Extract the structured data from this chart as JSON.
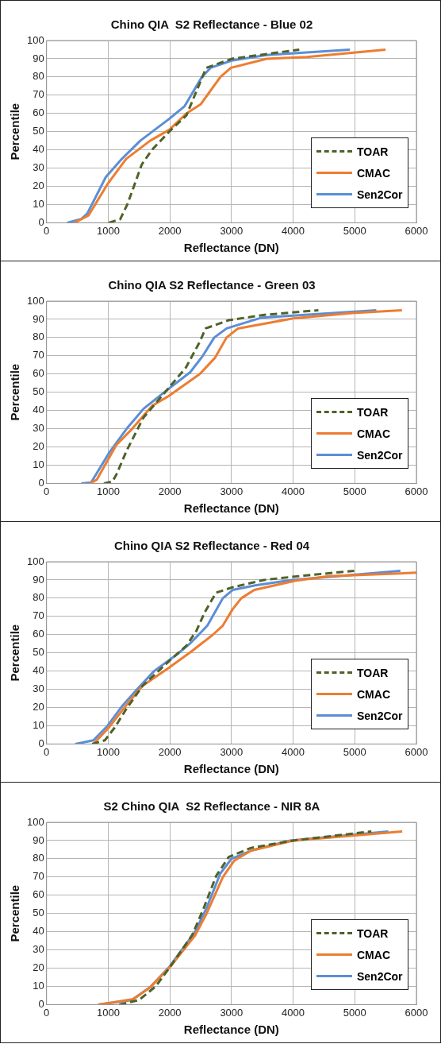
{
  "chart_data": [
    {
      "type": "line",
      "title": "Chino QIA  S2 Reflectance - Blue 02",
      "xlabel": "Reflectance (DN)",
      "ylabel": "Percentile",
      "xlim": [
        0,
        6000
      ],
      "xticks": [
        0,
        1000,
        2000,
        3000,
        4000,
        5000,
        6000
      ],
      "ylim": [
        0,
        100
      ],
      "yticks": [
        0,
        10,
        20,
        30,
        40,
        50,
        60,
        70,
        80,
        90,
        100
      ],
      "grid": true,
      "legend": "bottom right",
      "marker": "none",
      "series": [
        {
          "name": "TOAR",
          "color": "#4f6228",
          "line_style": "dashed",
          "x": [
            1010,
            1195,
            1310,
            1545,
            1710,
            1990,
            2270,
            2380,
            2590,
            3010,
            3660,
            4100
          ],
          "values": [
            0,
            2,
            10,
            32,
            40,
            50,
            59,
            68,
            85,
            90,
            93,
            95
          ]
        },
        {
          "name": "CMAC",
          "color": "#ed7d31",
          "line_style": "solid",
          "x": [
            450,
            680,
            985,
            1290,
            1680,
            1990,
            2270,
            2500,
            2820,
            2990,
            3570,
            4220,
            5500
          ],
          "values": [
            0,
            4,
            21,
            35,
            45,
            51,
            60,
            65,
            80,
            85,
            90,
            91,
            95
          ]
        },
        {
          "name": "Sen2Cor",
          "color": "#5b8ed6",
          "line_style": "solid",
          "x": [
            335,
            560,
            660,
            960,
            1220,
            1520,
            1990,
            2240,
            2520,
            2660,
            3000,
            3570,
            4920
          ],
          "values": [
            0,
            2,
            5,
            25,
            35,
            45,
            57,
            64,
            80,
            85,
            89,
            92,
            95
          ]
        }
      ]
    },
    {
      "type": "line",
      "title": "Chino QIA S2 Reflectance - Green 03",
      "xlabel": "Reflectance (DN)",
      "ylabel": "Percentile",
      "xlim": [
        0,
        6000
      ],
      "xticks": [
        0,
        1000,
        2000,
        3000,
        4000,
        5000,
        6000
      ],
      "ylim": [
        0,
        100
      ],
      "yticks": [
        0,
        10,
        20,
        30,
        40,
        50,
        60,
        70,
        80,
        90,
        100
      ],
      "grid": true,
      "legend": "bottom right",
      "marker": "none",
      "series": [
        {
          "name": "TOAR",
          "color": "#4f6228",
          "line_style": "dashed",
          "x": [
            930,
            1070,
            1135,
            1300,
            1570,
            1960,
            2260,
            2490,
            2580,
            2950,
            3540,
            4410
          ],
          "values": [
            0,
            1,
            5,
            18,
            36,
            51.5,
            63.5,
            78,
            85,
            89.5,
            92.5,
            95
          ]
        },
        {
          "name": "CMAC",
          "color": "#ed7d31",
          "line_style": "solid",
          "x": [
            700,
            815,
            1130,
            1390,
            1710,
            1985,
            2485,
            2735,
            2920,
            3105,
            4000,
            4960,
            5765
          ],
          "values": [
            0,
            2,
            21,
            30,
            42.5,
            48,
            60,
            69,
            80,
            85,
            90.5,
            93.5,
            95
          ]
        },
        {
          "name": "Sen2Cor",
          "color": "#5b8ed6",
          "line_style": "solid",
          "x": [
            563,
            723,
            1020,
            1300,
            1575,
            1985,
            2330,
            2535,
            2720,
            2920,
            3495,
            5350
          ],
          "values": [
            0,
            0.5,
            17,
            30,
            41,
            52,
            61,
            70,
            80,
            85,
            91,
            95
          ]
        }
      ]
    },
    {
      "type": "line",
      "title": "Chino QIA S2 Reflectance - Red 04",
      "xlabel": "Reflectance (DN)",
      "ylabel": "Percentile",
      "xlim": [
        0,
        6000
      ],
      "xticks": [
        0,
        1000,
        2000,
        3000,
        4000,
        5000,
        6000
      ],
      "ylim": [
        0,
        100
      ],
      "yticks": [
        0,
        10,
        20,
        30,
        40,
        50,
        60,
        70,
        80,
        90,
        100
      ],
      "grid": true,
      "legend": "bottom right",
      "marker": "none",
      "series": [
        {
          "name": "TOAR",
          "color": "#4f6228",
          "line_style": "dashed",
          "x": [
            740,
            945,
            1105,
            1290,
            1560,
            2020,
            2270,
            2430,
            2570,
            2750,
            3020,
            3525,
            4210,
            4990
          ],
          "values": [
            0,
            2,
            9,
            19,
            32,
            46.5,
            54,
            62,
            72.5,
            83,
            86,
            90,
            92.5,
            95
          ]
        },
        {
          "name": "CMAC",
          "color": "#ed7d31",
          "line_style": "solid",
          "x": [
            760,
            1010,
            1310,
            1560,
            1970,
            2340,
            2700,
            2860,
            3020,
            3160,
            3370,
            4030,
            4575,
            6000
          ],
          "values": [
            0,
            9,
            22,
            32,
            41.5,
            50.5,
            60,
            65,
            74,
            80,
            84.5,
            89.5,
            92,
            94
          ]
        },
        {
          "name": "Sen2Cor",
          "color": "#5b8ed6",
          "line_style": "solid",
          "x": [
            465,
            760,
            990,
            1220,
            1470,
            1745,
            2110,
            2340,
            2610,
            2860,
            3020,
            3385,
            3980,
            5740
          ],
          "values": [
            0,
            2,
            10,
            20.5,
            30,
            40,
            49,
            55.5,
            65,
            80,
            84.5,
            87,
            90,
            95
          ]
        }
      ]
    },
    {
      "type": "line",
      "title": "S2 Chino QIA  S2 Reflectance - NIR 8A",
      "xlabel": "Reflectance (DN)",
      "ylabel": "Percentile",
      "xlim": [
        0,
        6000
      ],
      "xticks": [
        0,
        1000,
        2000,
        3000,
        4000,
        5000,
        6000
      ],
      "ylim": [
        0,
        100
      ],
      "yticks": [
        0,
        10,
        20,
        30,
        40,
        50,
        60,
        70,
        80,
        90,
        100
      ],
      "grid": true,
      "legend": "bottom right",
      "marker": "none",
      "series": [
        {
          "name": "TOAR",
          "color": "#4f6228",
          "line_style": "dashed",
          "x": [
            1180,
            1500,
            1770,
            2000,
            2360,
            2545,
            2750,
            2955,
            3320,
            4000,
            5270
          ],
          "values": [
            0,
            2.5,
            10,
            20.5,
            38,
            52.5,
            70.5,
            81,
            86,
            90,
            95
          ]
        },
        {
          "name": "CMAC",
          "color": "#ed7d31",
          "line_style": "solid",
          "x": [
            840,
            1410,
            1680,
            2000,
            2410,
            2590,
            2860,
            3045,
            3320,
            4000,
            5770
          ],
          "values": [
            0,
            3,
            9.5,
            20.5,
            38,
            49.5,
            70,
            79,
            84.5,
            90,
            95
          ]
        },
        {
          "name": "Sen2Cor",
          "color": "#5b8ed6",
          "line_style": "solid",
          "x": [
            840,
            1380,
            1680,
            2000,
            2410,
            2590,
            2820,
            3000,
            3320,
            3950,
            5545
          ],
          "values": [
            0,
            2.5,
            9.5,
            21,
            40,
            52.5,
            72,
            80,
            84.5,
            90,
            95
          ]
        }
      ]
    }
  ]
}
